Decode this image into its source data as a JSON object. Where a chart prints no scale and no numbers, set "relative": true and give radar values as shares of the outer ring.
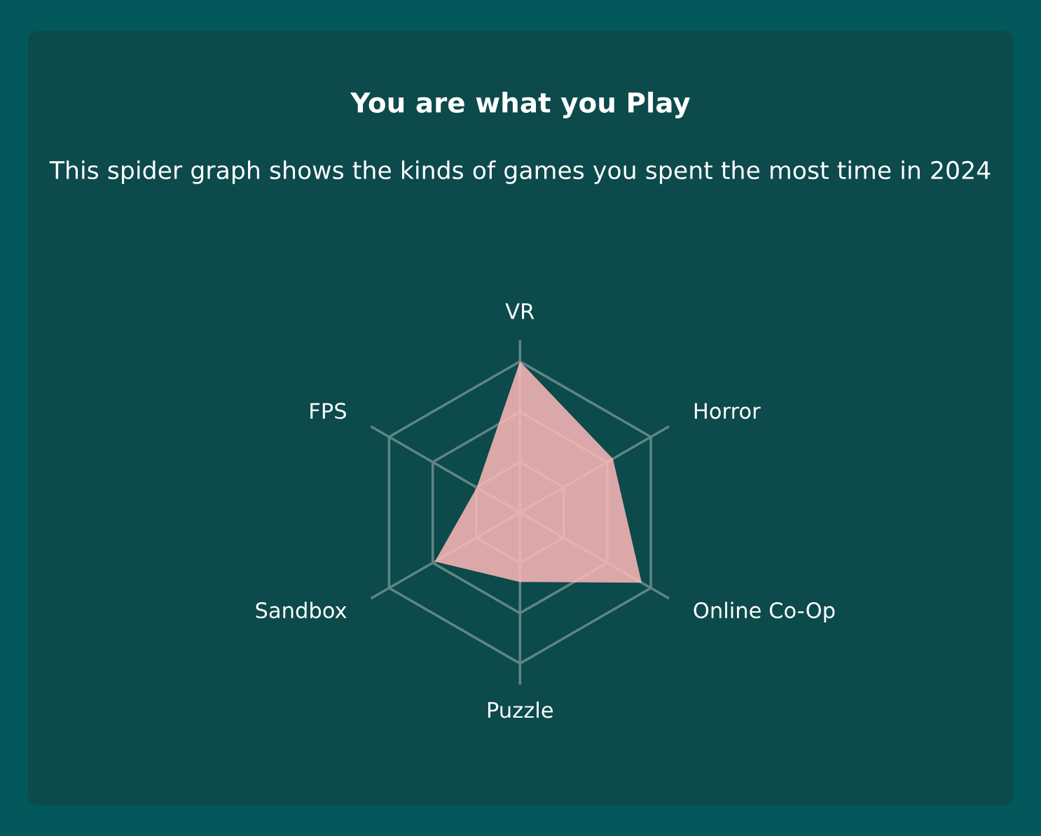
{
  "chart_data": {
    "type": "radar",
    "title": "You are what you Play",
    "subtitle": "This spider graph shows the kinds of games you spent the most time in 2024",
    "categories": [
      "VR",
      "Horror",
      "Online Co-Op",
      "Puzzle",
      "Sandbox",
      "FPS"
    ],
    "relative": true,
    "grid": true,
    "series": [
      {
        "color": "#ffb8b8",
        "values": [
          1.0,
          0.71,
          0.93,
          0.46,
          0.65,
          0.33
        ]
      }
    ]
  }
}
